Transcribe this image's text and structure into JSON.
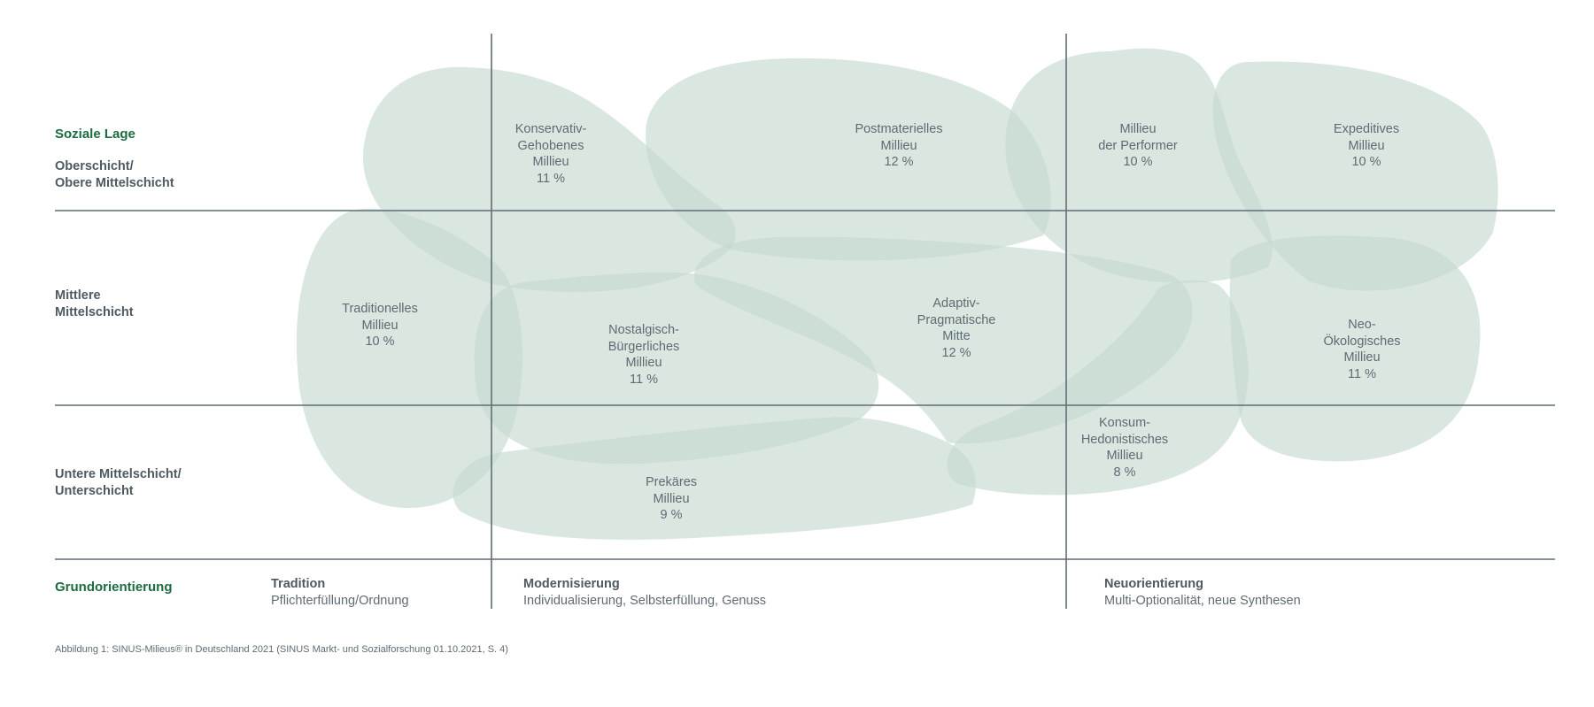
{
  "diagram": {
    "row_header_title": "Soziale Lage",
    "rows": [
      {
        "line1": "Oberschicht/",
        "line2": "Obere Mittelschicht"
      },
      {
        "line1": "Mittlere",
        "line2": "Mittelschicht"
      },
      {
        "line1": "Untere Mittelschicht/",
        "line2": "Unterschicht"
      }
    ],
    "column_header_title": "Grundorientierung",
    "columns": [
      {
        "title": "Tradition",
        "subtitle": "Pflichterfüllung/Ordnung"
      },
      {
        "title": "Modernisierung",
        "subtitle": "Individualisierung, Selbsterfüllung, Genuss"
      },
      {
        "title": "Neuorientierung",
        "subtitle": "Multi-Optionalität, neue Synthesen"
      }
    ],
    "milieus": [
      {
        "lines": [
          "Konservativ-",
          "Gehobenes",
          "Millieu"
        ],
        "share": "11 %"
      },
      {
        "lines": [
          "Postmaterielles",
          "Millieu"
        ],
        "share": "12 %"
      },
      {
        "lines": [
          "Millieu",
          "der Performer"
        ],
        "share": "10 %"
      },
      {
        "lines": [
          "Expeditives",
          "Millieu"
        ],
        "share": "10 %"
      },
      {
        "lines": [
          "Traditionelles",
          "Millieu"
        ],
        "share": "10 %"
      },
      {
        "lines": [
          "Nostalgisch-",
          "Bürgerliches",
          "Millieu"
        ],
        "share": "11 %"
      },
      {
        "lines": [
          "Adaptiv-",
          "Pragmatische",
          "Mitte"
        ],
        "share": "12 %"
      },
      {
        "lines": [
          "Neo-",
          "Ökologisches",
          "Millieu"
        ],
        "share": "11 %"
      },
      {
        "lines": [
          "Konsum-",
          "Hedonistisches",
          "Millieu"
        ],
        "share": "8 %"
      },
      {
        "lines": [
          "Prekäres",
          "Millieu"
        ],
        "share": "9 %"
      }
    ],
    "caption": "Abbildung 1: SINUS-Milieus® in Deutschland 2021 (SINUS Markt- und Sozialforschung 01.10.2021, S. 4)"
  },
  "colors": {
    "milieu_fill": "#c4d9cf",
    "grid_line": "#5f6d75",
    "header_green": "#1d6b3f",
    "text": "#5e6b72"
  }
}
